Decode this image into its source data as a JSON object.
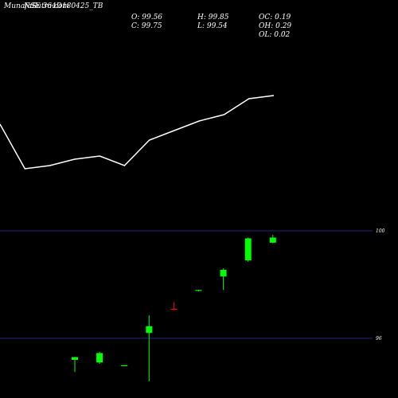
{
  "header": {
    "title": "MunafaSutra.com",
    "ticker": "NSE 364D180425_TB"
  },
  "ohlc": {
    "open": "O: 99.56",
    "high": "H: 99.85",
    "oc": "OC: 0.19",
    "close": "C: 99.75",
    "low": "L: 99.54",
    "oh": "OH: 0.29",
    "ol": "OL: 0.02"
  },
  "colors": {
    "background": "#000000",
    "line": "#ffffff",
    "up_candle": "#00ff00",
    "down_candle": "#ff0000",
    "gridline": "#3333aa"
  },
  "chart_data": [
    {
      "type": "line",
      "x": [
        1,
        2,
        3,
        4,
        5,
        6,
        7,
        8,
        9,
        10,
        11,
        12
      ],
      "values": [
        97.6,
        96.2,
        96.3,
        96.5,
        96.6,
        96.3,
        97.1,
        97.4,
        97.7,
        97.9,
        98.4,
        98.5
      ],
      "ylim": [
        95.0,
        100.0
      ],
      "grid": false
    },
    {
      "type": "candlestick",
      "ylim": [
        95.0,
        100.5
      ],
      "y_ticks": [
        100,
        96
      ],
      "y_tick_labels": [
        "100",
        "96"
      ],
      "candles": [
        {
          "open": 95.2,
          "high": 95.27,
          "low": 94.75,
          "close": 95.3
        },
        {
          "open": 95.1,
          "high": 95.5,
          "low": 95.05,
          "close": 95.45
        },
        {
          "open": 94.98,
          "high": 94.99,
          "low": 94.96,
          "close": 95.0
        },
        {
          "open": 96.2,
          "high": 96.85,
          "low": 94.4,
          "close": 96.45
        },
        {
          "open": 97.1,
          "high": 97.35,
          "low": 97.05,
          "close": 97.08
        },
        {
          "open": 97.78,
          "high": 97.8,
          "low": 97.75,
          "close": 97.8
        },
        {
          "open": 98.3,
          "high": 98.6,
          "low": 97.8,
          "close": 98.55
        },
        {
          "open": 98.9,
          "high": 99.75,
          "low": 98.85,
          "close": 99.72
        },
        {
          "open": 99.56,
          "high": 99.85,
          "low": 99.54,
          "close": 99.75
        }
      ]
    }
  ]
}
